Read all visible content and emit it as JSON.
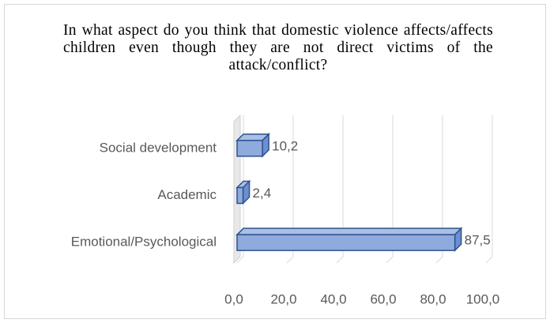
{
  "chart_data": {
    "type": "bar3d",
    "title": "In what aspect do you think that domestic violence affects/affects children even though they are not direct victims of the attack/conflict?",
    "categories": [
      "Social development",
      "Academic",
      "Emotional/Psychological"
    ],
    "values": [
      10.2,
      2.4,
      87.5
    ],
    "value_labels": [
      "10,2",
      "2,4",
      "87,5"
    ],
    "color": "#8faadc",
    "xlim": [
      0,
      100
    ],
    "xticks": [
      {
        "value": 0,
        "label": "0,0"
      },
      {
        "value": 20,
        "label": "20,0"
      },
      {
        "value": 40,
        "label": "40,0"
      },
      {
        "value": 60,
        "label": "60,0"
      },
      {
        "value": 80,
        "label": "80,0"
      },
      {
        "value": 100,
        "label": "100,0"
      }
    ],
    "grid": true
  }
}
